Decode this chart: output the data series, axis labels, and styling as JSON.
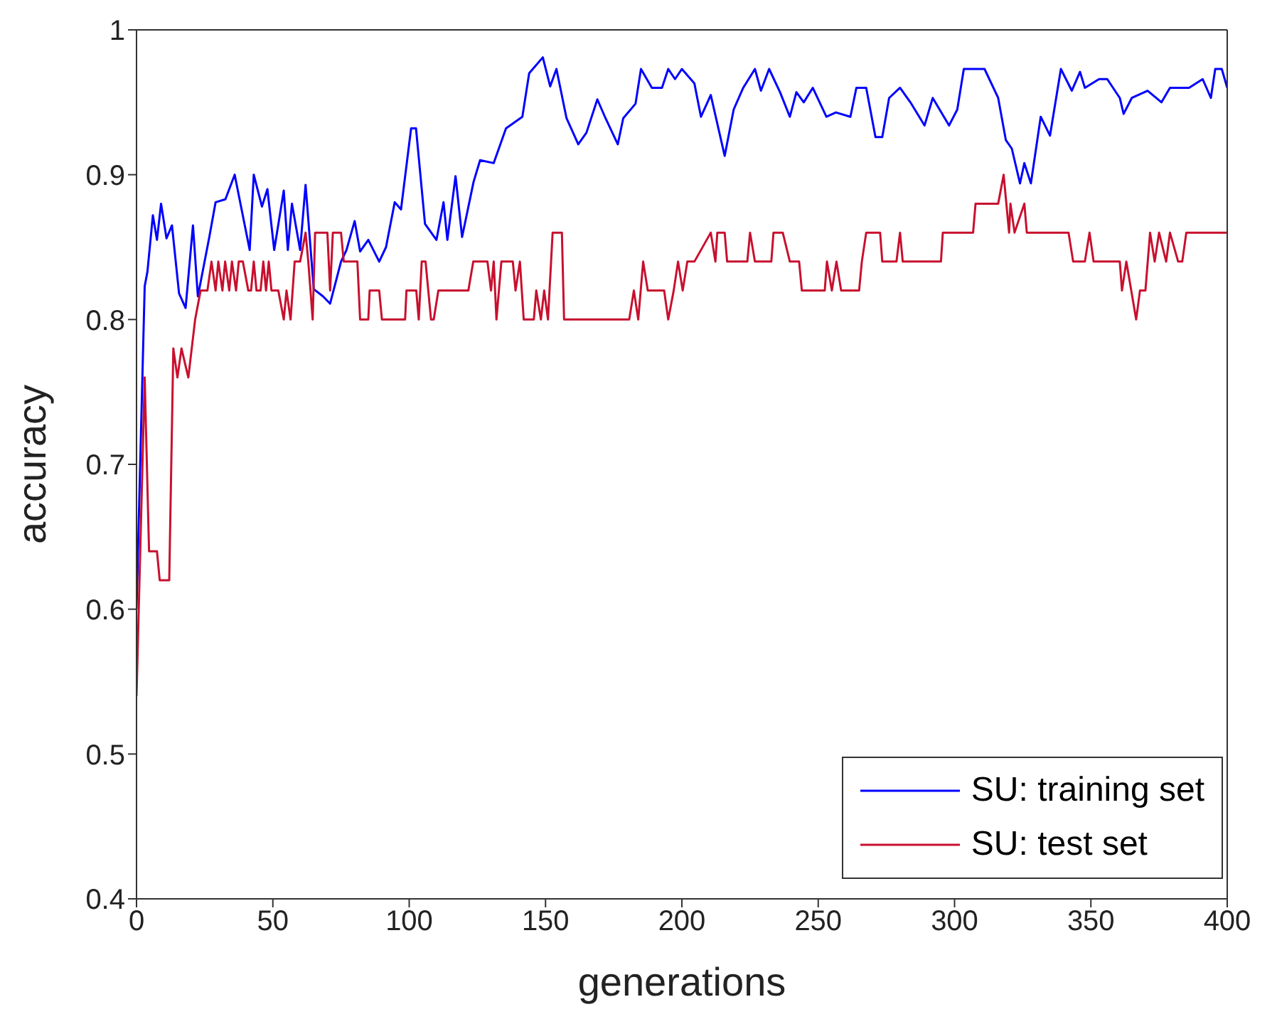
{
  "chart_data": {
    "type": "line",
    "xlabel": "generations",
    "ylabel": "accuracy",
    "xlim": [
      0,
      400
    ],
    "xticks": [
      0,
      50,
      100,
      150,
      200,
      250,
      300,
      350,
      400
    ],
    "ylim": [
      0.4,
      1
    ],
    "yticks": [
      0.4,
      0.5,
      0.6,
      0.7,
      0.8,
      0.9,
      1
    ],
    "grid": false,
    "legend": "bottom right",
    "marker": "none",
    "line_style": "solid",
    "series": [
      {
        "name": "SU: training set",
        "color": "#0000ff",
        "x": [
          0,
          3,
          4,
          6,
          7.5,
          9,
          11,
          13,
          15.6,
          18,
          20.7,
          22.5,
          26.7,
          29,
          32.6,
          36,
          41.5,
          43,
          46,
          48,
          50.5,
          54,
          55.5,
          57,
          60,
          62,
          65,
          68.4,
          71,
          75,
          77,
          80,
          82,
          85,
          89,
          91.5,
          94.7,
          97,
          100.7,
          102.5,
          105.8,
          110,
          112.6,
          114,
          117,
          119.4,
          123.6,
          126,
          131,
          135.5,
          141.5,
          144,
          149,
          151.7,
          154,
          157.7,
          162,
          165,
          169,
          172,
          176.5,
          178.5,
          183,
          185,
          189,
          192.7,
          195,
          197.5,
          200,
          204.6,
          207,
          210.6,
          215.7,
          219,
          222.5,
          226.8,
          229,
          232,
          236,
          239.6,
          242,
          244.7,
          248,
          253,
          256.5,
          261.8,
          264,
          267.6,
          271,
          273.5,
          276,
          280,
          283.8,
          289,
          292,
          298,
          301,
          303.4,
          307.7,
          311,
          316,
          318.8,
          321,
          324,
          325.6,
          328,
          331.6,
          335,
          339,
          343,
          346,
          347.8,
          353,
          356,
          360.6,
          362,
          365,
          370.8,
          375.9,
          379,
          386,
          391,
          394,
          395.6,
          398,
          400
        ],
        "values": [
          0.6,
          0.823,
          0.833,
          0.872,
          0.855,
          0.88,
          0.856,
          0.865,
          0.818,
          0.808,
          0.865,
          0.816,
          0.857,
          0.881,
          0.883,
          0.9,
          0.848,
          0.9,
          0.878,
          0.89,
          0.848,
          0.889,
          0.848,
          0.88,
          0.848,
          0.893,
          0.821,
          0.816,
          0.811,
          0.84,
          0.848,
          0.868,
          0.847,
          0.855,
          0.84,
          0.85,
          0.881,
          0.876,
          0.932,
          0.932,
          0.866,
          0.855,
          0.881,
          0.855,
          0.899,
          0.857,
          0.895,
          0.91,
          0.908,
          0.932,
          0.94,
          0.97,
          0.981,
          0.961,
          0.973,
          0.939,
          0.921,
          0.929,
          0.952,
          0.939,
          0.921,
          0.939,
          0.949,
          0.973,
          0.96,
          0.96,
          0.973,
          0.966,
          0.973,
          0.963,
          0.94,
          0.955,
          0.913,
          0.945,
          0.96,
          0.973,
          0.958,
          0.973,
          0.957,
          0.94,
          0.957,
          0.95,
          0.96,
          0.94,
          0.943,
          0.94,
          0.96,
          0.96,
          0.926,
          0.926,
          0.953,
          0.96,
          0.95,
          0.934,
          0.953,
          0.934,
          0.945,
          0.973,
          0.973,
          0.973,
          0.953,
          0.924,
          0.918,
          0.894,
          0.908,
          0.894,
          0.94,
          0.927,
          0.973,
          0.958,
          0.971,
          0.96,
          0.966,
          0.966,
          0.953,
          0.942,
          0.953,
          0.958,
          0.95,
          0.96,
          0.96,
          0.966,
          0.953,
          0.973,
          0.973,
          0.96
        ]
      },
      {
        "name": "SU: test set",
        "color": "#c8102e",
        "x": [
          0,
          3,
          4.6,
          7.5,
          8.5,
          12,
          13.5,
          15,
          16.5,
          19,
          21.5,
          23.5,
          26,
          27.5,
          29,
          30,
          31.5,
          32.5,
          34,
          35,
          36.5,
          37.5,
          39,
          41,
          42,
          43,
          44,
          45.5,
          46.5,
          47.5,
          48.5,
          49.5,
          52,
          54,
          55,
          56.5,
          58,
          60,
          62,
          63,
          64.6,
          65.5,
          70,
          71,
          72,
          75,
          76,
          81,
          82,
          85,
          85.5,
          89,
          90,
          98.5,
          99,
          102.6,
          103.5,
          104.6,
          106,
          107,
          108,
          109,
          110.7,
          121.7,
          123.5,
          128.7,
          130,
          131,
          132,
          133.8,
          138,
          139,
          140.6,
          142,
          145.7,
          146.6,
          148.3,
          149.5,
          150.9,
          152.6,
          156,
          156.8,
          180.7,
          182.4,
          184,
          185.8,
          187.5,
          193.5,
          195,
          197,
          198.6,
          200.3,
          202,
          204.6,
          210.6,
          212.3,
          213,
          215.7,
          216.6,
          224,
          225,
          226.8,
          232.8,
          233.6,
          237,
          239.6,
          243,
          244,
          252.4,
          253.2,
          255,
          256.7,
          258.4,
          265,
          266,
          267.6,
          272.7,
          273.5,
          278.7,
          280,
          281,
          295,
          295.7,
          306.8,
          307.7,
          316,
          318,
          320,
          320.5,
          322,
          325.6,
          326.5,
          341.8,
          343.5,
          347.8,
          349.5,
          351,
          360.6,
          361.4,
          363,
          364.8,
          366.6,
          368,
          370,
          371.7,
          373.4,
          375,
          377.6,
          379,
          382,
          383.5,
          385,
          400
        ],
        "values": [
          0.54,
          0.76,
          0.64,
          0.64,
          0.62,
          0.62,
          0.78,
          0.76,
          0.78,
          0.76,
          0.8,
          0.82,
          0.82,
          0.84,
          0.82,
          0.84,
          0.82,
          0.84,
          0.82,
          0.84,
          0.82,
          0.84,
          0.84,
          0.82,
          0.82,
          0.84,
          0.82,
          0.82,
          0.84,
          0.82,
          0.84,
          0.82,
          0.82,
          0.8,
          0.82,
          0.8,
          0.84,
          0.84,
          0.86,
          0.84,
          0.8,
          0.86,
          0.86,
          0.82,
          0.86,
          0.86,
          0.84,
          0.84,
          0.8,
          0.8,
          0.82,
          0.82,
          0.8,
          0.8,
          0.82,
          0.82,
          0.8,
          0.84,
          0.84,
          0.82,
          0.8,
          0.8,
          0.82,
          0.82,
          0.84,
          0.84,
          0.82,
          0.84,
          0.8,
          0.84,
          0.84,
          0.82,
          0.84,
          0.8,
          0.8,
          0.82,
          0.8,
          0.82,
          0.8,
          0.86,
          0.86,
          0.8,
          0.8,
          0.82,
          0.8,
          0.84,
          0.82,
          0.82,
          0.8,
          0.82,
          0.84,
          0.82,
          0.84,
          0.84,
          0.86,
          0.84,
          0.86,
          0.86,
          0.84,
          0.84,
          0.86,
          0.84,
          0.84,
          0.86,
          0.86,
          0.84,
          0.84,
          0.82,
          0.82,
          0.84,
          0.82,
          0.84,
          0.82,
          0.82,
          0.84,
          0.86,
          0.86,
          0.84,
          0.84,
          0.86,
          0.84,
          0.84,
          0.86,
          0.86,
          0.88,
          0.88,
          0.9,
          0.86,
          0.88,
          0.86,
          0.88,
          0.86,
          0.86,
          0.84,
          0.84,
          0.86,
          0.84,
          0.84,
          0.82,
          0.84,
          0.82,
          0.8,
          0.82,
          0.82,
          0.86,
          0.84,
          0.86,
          0.84,
          0.86,
          0.84,
          0.84,
          0.86,
          0.86
        ]
      }
    ]
  }
}
